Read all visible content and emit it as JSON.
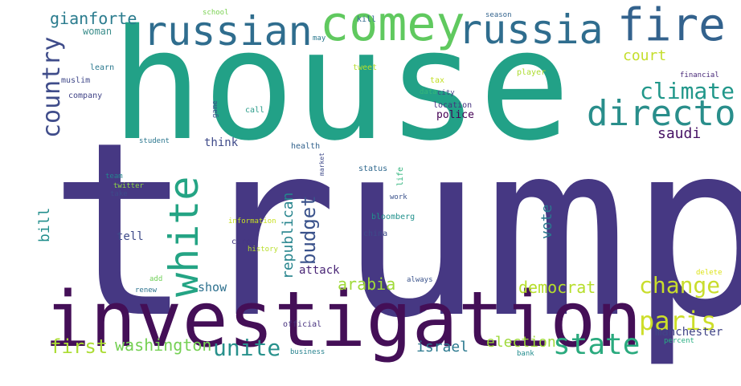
{
  "words": [
    {
      "text": "trump",
      "color": "#463883"
    },
    {
      "text": "house",
      "color": "#22A187"
    },
    {
      "text": "investigation",
      "color": "#440F57"
    },
    {
      "text": "comey",
      "color": "#60C95F"
    },
    {
      "text": "russian",
      "color": "#2F6D8E"
    },
    {
      "text": "russia",
      "color": "#2F6D8E"
    },
    {
      "text": "fire",
      "color": "#33628D"
    },
    {
      "text": "white",
      "color": "#24A484"
    },
    {
      "text": "director",
      "color": "#298E8B"
    },
    {
      "text": "country",
      "color": "#3F4C8A"
    },
    {
      "text": "state",
      "color": "#2AAA7E"
    },
    {
      "text": "change",
      "color": "#C9DD2C"
    },
    {
      "text": "paris",
      "color": "#CDDE2A"
    },
    {
      "text": "climate",
      "color": "#21978A"
    },
    {
      "text": "unite",
      "color": "#28918C"
    },
    {
      "text": "budget",
      "color": "#3A528B"
    },
    {
      "text": "gianforte",
      "color": "#2B7C8E"
    },
    {
      "text": "republican",
      "color": "#26848D"
    },
    {
      "text": "arabia",
      "color": "#A0DA39"
    },
    {
      "text": "democrat",
      "color": "#B6DE2B"
    },
    {
      "text": "first",
      "color": "#ABDC33"
    },
    {
      "text": "washington",
      "color": "#75D054"
    },
    {
      "text": "israel",
      "color": "#2A788E"
    },
    {
      "text": "election",
      "color": "#9ED93A"
    },
    {
      "text": "saudi",
      "color": "#471365"
    },
    {
      "text": "court",
      "color": "#C4DE2B"
    },
    {
      "text": "vote",
      "color": "#2A788E"
    },
    {
      "text": "bill",
      "color": "#228E8C"
    },
    {
      "text": "manchester",
      "color": "#414487"
    },
    {
      "text": "woman",
      "color": "#3B8D8B"
    },
    {
      "text": "attack",
      "color": "#482475"
    },
    {
      "text": "police",
      "color": "#440154"
    },
    {
      "text": "show",
      "color": "#2D708E"
    },
    {
      "text": "tell",
      "color": "#3E4A89"
    },
    {
      "text": "think",
      "color": "#3E4A89"
    },
    {
      "text": "school",
      "color": "#7AD151"
    },
    {
      "text": "may",
      "color": "#2A788E"
    },
    {
      "text": "kill",
      "color": "#31688E"
    },
    {
      "text": "season",
      "color": "#33638D"
    },
    {
      "text": "learn",
      "color": "#2A788E"
    },
    {
      "text": "muslim",
      "color": "#3F4889"
    },
    {
      "text": "company",
      "color": "#404387"
    },
    {
      "text": "tweet",
      "color": "#B5DE2B"
    },
    {
      "text": "tax",
      "color": "#C2DF23"
    },
    {
      "text": "player",
      "color": "#ADDC30"
    },
    {
      "text": "financial",
      "color": "#482878"
    },
    {
      "text": "data",
      "color": "#35B779"
    },
    {
      "text": "city",
      "color": "#414487"
    },
    {
      "text": "location",
      "color": "#46337F"
    },
    {
      "text": "game",
      "color": "#3B528B"
    },
    {
      "text": "call",
      "color": "#2D9D8B"
    },
    {
      "text": "student",
      "color": "#2A768E"
    },
    {
      "text": "health",
      "color": "#33638D"
    },
    {
      "text": "market",
      "color": "#3E4A89"
    },
    {
      "text": "status",
      "color": "#30698E"
    },
    {
      "text": "life",
      "color": "#2FB47C"
    },
    {
      "text": "team",
      "color": "#25848E"
    },
    {
      "text": "twitter",
      "color": "#8FD744"
    },
    {
      "text": "take",
      "color": "#3E4A89"
    },
    {
      "text": "work",
      "color": "#3B528B"
    },
    {
      "text": "bloomberg",
      "color": "#21918C"
    },
    {
      "text": "information",
      "color": "#C7E020"
    },
    {
      "text": "china",
      "color": "#3E4A89"
    },
    {
      "text": "care",
      "color": "#453781"
    },
    {
      "text": "history",
      "color": "#B8DE29"
    },
    {
      "text": "add",
      "color": "#70CF57"
    },
    {
      "text": "renew",
      "color": "#2C728E"
    },
    {
      "text": "always",
      "color": "#3A538B"
    },
    {
      "text": "delete",
      "color": "#DDE318"
    },
    {
      "text": "official",
      "color": "#46307E"
    },
    {
      "text": "business",
      "color": "#26828E"
    },
    {
      "text": "percent",
      "color": "#26AD81"
    },
    {
      "text": "bank",
      "color": "#228C8D"
    }
  ]
}
